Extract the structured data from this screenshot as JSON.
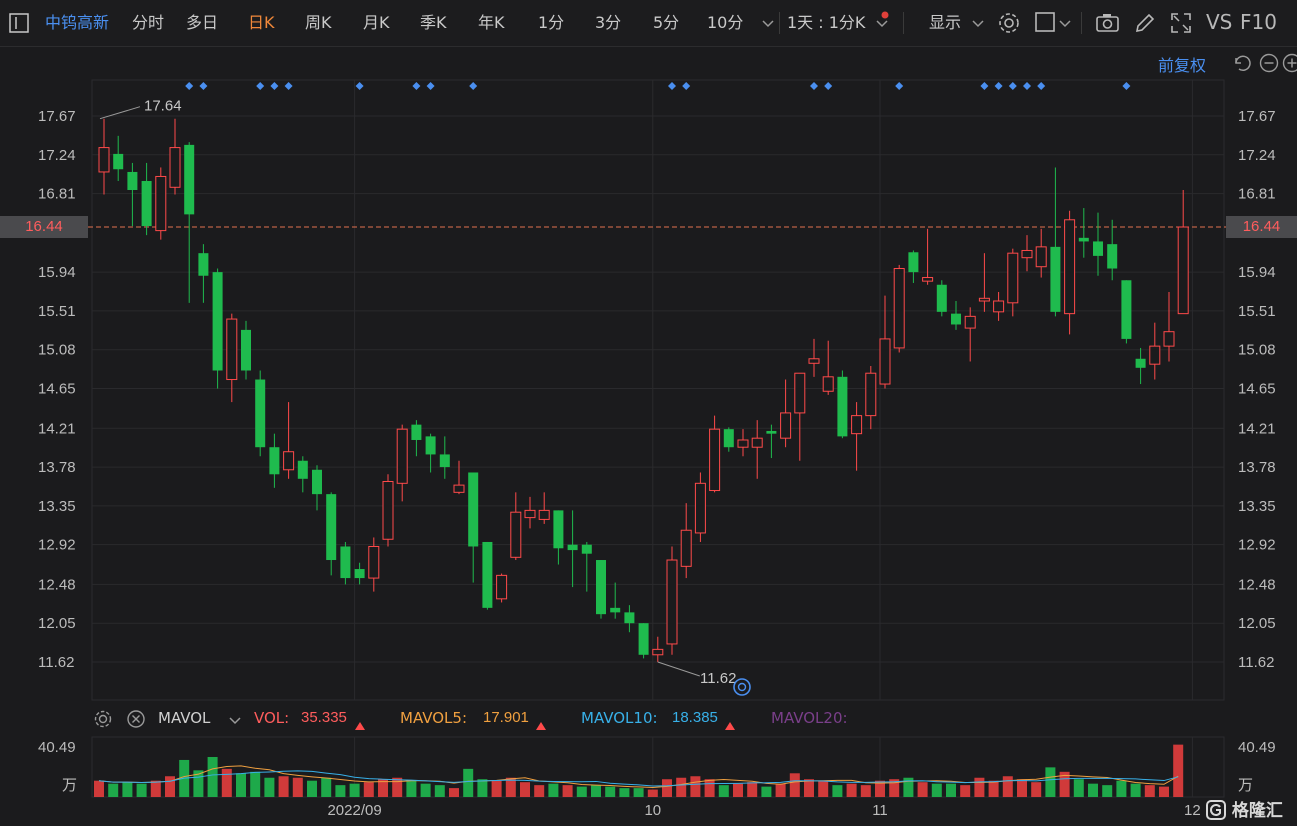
{
  "toolbar": {
    "left_icon": "sidebar-toggle-icon",
    "stock_name": "中钨高新",
    "periods": [
      "分时",
      "多日",
      "日K",
      "周K",
      "月K",
      "季K",
      "年K",
      "1分",
      "3分",
      "5分",
      "10分"
    ],
    "active_period": "日K",
    "combo": "1天 : 1分K",
    "display": "显示",
    "vs": "VS",
    "f10": "F10",
    "icons": [
      "settings-icon",
      "layout-icon",
      "camera-icon",
      "draw-pen-icon",
      "fullscreen-icon"
    ]
  },
  "adjust_label": "前复权",
  "price_axis_labels": [
    "17.67",
    "17.24",
    "16.81",
    "15.94",
    "15.51",
    "15.08",
    "14.65",
    "14.21",
    "13.78",
    "13.35",
    "12.92",
    "12.48",
    "12.05",
    "11.62"
  ],
  "current_price_label": "16.44",
  "colors": {
    "up": "#ff4a4a",
    "down": "#1fbb4e",
    "accent": "#4a8ff0",
    "orange": "#f0883a",
    "bg": "#1b1b1d"
  },
  "indicator_bar": {
    "name": "MAVOL",
    "vol_label": "VOL:",
    "vol_value": "35.335",
    "ma5_label": "MAVOL5:",
    "ma5_value": "17.901",
    "ma10_label": "MAVOL10:",
    "ma10_value": "18.385",
    "ma20_label": "MAVOL20:"
  },
  "volume_axis": {
    "top": "40.49",
    "unit": "万"
  },
  "date_labels": [
    "2022/09",
    "10",
    "11",
    "12"
  ],
  "logo": "格隆汇",
  "chart_data": {
    "type": "candlestick",
    "high_annotation": "17.64",
    "low_annotation": "11.62",
    "ylim": [
      11.35,
      17.95
    ],
    "candles": [
      {
        "o": 17.05,
        "c": 17.32,
        "h": 17.64,
        "l": 16.8
      },
      {
        "o": 17.25,
        "c": 17.08,
        "h": 17.45,
        "l": 16.95
      },
      {
        "o": 17.05,
        "c": 16.85,
        "h": 17.15,
        "l": 16.45
      },
      {
        "o": 16.95,
        "c": 16.45,
        "h": 17.15,
        "l": 16.35
      },
      {
        "o": 16.4,
        "c": 17.0,
        "h": 17.1,
        "l": 16.3
      },
      {
        "o": 16.88,
        "c": 17.32,
        "h": 17.64,
        "l": 16.8
      },
      {
        "o": 17.35,
        "c": 16.58,
        "h": 17.38,
        "l": 15.6
      },
      {
        "o": 16.15,
        "c": 15.9,
        "h": 16.25,
        "l": 15.6
      },
      {
        "o": 15.94,
        "c": 14.85,
        "h": 15.98,
        "l": 14.65
      },
      {
        "o": 14.75,
        "c": 15.42,
        "h": 15.48,
        "l": 14.5
      },
      {
        "o": 15.3,
        "c": 14.85,
        "h": 15.4,
        "l": 14.75
      },
      {
        "o": 14.75,
        "c": 14.0,
        "h": 14.85,
        "l": 13.9
      },
      {
        "o": 14.0,
        "c": 13.7,
        "h": 14.15,
        "l": 13.55
      },
      {
        "o": 13.75,
        "c": 13.95,
        "h": 14.5,
        "l": 13.65
      },
      {
        "o": 13.85,
        "c": 13.65,
        "h": 13.9,
        "l": 13.5
      },
      {
        "o": 13.75,
        "c": 13.48,
        "h": 13.8,
        "l": 13.3
      },
      {
        "o": 13.48,
        "c": 12.75,
        "h": 13.5,
        "l": 12.58
      },
      {
        "o": 12.9,
        "c": 12.55,
        "h": 12.95,
        "l": 12.48
      },
      {
        "o": 12.65,
        "c": 12.55,
        "h": 12.72,
        "l": 12.48
      },
      {
        "o": 12.55,
        "c": 12.9,
        "h": 13.0,
        "l": 12.4
      },
      {
        "o": 12.98,
        "c": 13.62,
        "h": 13.7,
        "l": 12.9
      },
      {
        "o": 13.6,
        "c": 14.2,
        "h": 14.25,
        "l": 13.4
      },
      {
        "o": 14.25,
        "c": 14.08,
        "h": 14.3,
        "l": 13.9
      },
      {
        "o": 14.12,
        "c": 13.92,
        "h": 14.15,
        "l": 13.72
      },
      {
        "o": 13.92,
        "c": 13.78,
        "h": 14.12,
        "l": 13.65
      },
      {
        "o": 13.5,
        "c": 13.58,
        "h": 13.85,
        "l": 13.48
      },
      {
        "o": 13.72,
        "c": 12.9,
        "h": 13.72,
        "l": 12.5
      },
      {
        "o": 12.95,
        "c": 12.22,
        "h": 12.95,
        "l": 12.2
      },
      {
        "o": 12.32,
        "c": 12.58,
        "h": 12.6,
        "l": 12.28
      },
      {
        "o": 12.78,
        "c": 13.28,
        "h": 13.5,
        "l": 12.75
      },
      {
        "o": 13.22,
        "c": 13.3,
        "h": 13.45,
        "l": 13.1
      },
      {
        "o": 13.2,
        "c": 13.3,
        "h": 13.5,
        "l": 13.15
      },
      {
        "o": 13.3,
        "c": 12.88,
        "h": 13.3,
        "l": 12.7
      },
      {
        "o": 12.92,
        "c": 12.86,
        "h": 13.3,
        "l": 12.45
      },
      {
        "o": 12.92,
        "c": 12.82,
        "h": 12.95,
        "l": 12.4
      },
      {
        "o": 12.75,
        "c": 12.15,
        "h": 12.75,
        "l": 12.1
      },
      {
        "o": 12.22,
        "c": 12.17,
        "h": 12.5,
        "l": 12.1
      },
      {
        "o": 12.17,
        "c": 12.05,
        "h": 12.25,
        "l": 11.95
      },
      {
        "o": 12.05,
        "c": 11.7,
        "h": 12.05,
        "l": 11.66
      },
      {
        "o": 11.7,
        "c": 11.76,
        "h": 11.9,
        "l": 11.62
      },
      {
        "o": 11.82,
        "c": 12.75,
        "h": 12.9,
        "l": 11.7
      },
      {
        "o": 12.68,
        "c": 13.08,
        "h": 13.38,
        "l": 12.55
      },
      {
        "o": 13.05,
        "c": 13.6,
        "h": 13.72,
        "l": 12.95
      },
      {
        "o": 13.52,
        "c": 14.2,
        "h": 14.35,
        "l": 13.5
      },
      {
        "o": 14.2,
        "c": 14.0,
        "h": 14.22,
        "l": 13.95
      },
      {
        "o": 14.0,
        "c": 14.08,
        "h": 14.2,
        "l": 13.9
      },
      {
        "o": 14.0,
        "c": 14.1,
        "h": 14.3,
        "l": 13.65
      },
      {
        "o": 14.18,
        "c": 14.15,
        "h": 14.25,
        "l": 13.88
      },
      {
        "o": 14.1,
        "c": 14.38,
        "h": 14.75,
        "l": 14.0
      },
      {
        "o": 14.38,
        "c": 14.82,
        "h": 14.82,
        "l": 13.85
      },
      {
        "o": 14.93,
        "c": 14.98,
        "h": 15.2,
        "l": 14.78
      },
      {
        "o": 14.62,
        "c": 14.78,
        "h": 15.18,
        "l": 14.58
      },
      {
        "o": 14.78,
        "c": 14.12,
        "h": 14.85,
        "l": 14.1
      },
      {
        "o": 14.15,
        "c": 14.35,
        "h": 14.5,
        "l": 13.74
      },
      {
        "o": 14.35,
        "c": 14.82,
        "h": 14.9,
        "l": 14.2
      },
      {
        "o": 14.7,
        "c": 15.2,
        "h": 15.68,
        "l": 14.65
      },
      {
        "o": 15.1,
        "c": 15.98,
        "h": 16.02,
        "l": 15.05
      },
      {
        "o": 16.16,
        "c": 15.94,
        "h": 16.18,
        "l": 15.82
      },
      {
        "o": 15.84,
        "c": 15.88,
        "h": 16.42,
        "l": 15.8
      },
      {
        "o": 15.8,
        "c": 15.5,
        "h": 15.85,
        "l": 15.45
      },
      {
        "o": 15.48,
        "c": 15.36,
        "h": 15.62,
        "l": 15.3
      },
      {
        "o": 15.32,
        "c": 15.45,
        "h": 15.55,
        "l": 14.95
      },
      {
        "o": 15.62,
        "c": 15.65,
        "h": 16.15,
        "l": 15.5
      },
      {
        "o": 15.5,
        "c": 15.62,
        "h": 15.72,
        "l": 15.4
      },
      {
        "o": 15.6,
        "c": 16.15,
        "h": 16.2,
        "l": 15.45
      },
      {
        "o": 16.1,
        "c": 16.18,
        "h": 16.35,
        "l": 15.95
      },
      {
        "o": 16.0,
        "c": 16.22,
        "h": 16.42,
        "l": 15.88
      },
      {
        "o": 16.22,
        "c": 15.5,
        "h": 17.1,
        "l": 15.45
      },
      {
        "o": 15.48,
        "c": 16.52,
        "h": 16.62,
        "l": 15.25
      },
      {
        "o": 16.32,
        "c": 16.28,
        "h": 16.65,
        "l": 16.1
      },
      {
        "o": 16.28,
        "c": 16.12,
        "h": 16.6,
        "l": 15.9
      },
      {
        "o": 16.25,
        "c": 15.98,
        "h": 16.52,
        "l": 15.85
      },
      {
        "o": 15.85,
        "c": 15.2,
        "h": 15.85,
        "l": 15.15
      },
      {
        "o": 14.98,
        "c": 14.88,
        "h": 15.1,
        "l": 14.7
      },
      {
        "o": 14.92,
        "c": 15.12,
        "h": 15.38,
        "l": 14.75
      },
      {
        "o": 15.12,
        "c": 15.28,
        "h": 15.72,
        "l": 14.95
      },
      {
        "o": 15.48,
        "c": 16.44,
        "h": 16.85,
        "l": 15.48
      }
    ],
    "volume": [
      {
        "v": 11,
        "up": true
      },
      {
        "v": 9,
        "up": false
      },
      {
        "v": 10,
        "up": false
      },
      {
        "v": 9,
        "up": false
      },
      {
        "v": 11,
        "up": true
      },
      {
        "v": 14,
        "up": true
      },
      {
        "v": 25,
        "up": false
      },
      {
        "v": 18,
        "up": false
      },
      {
        "v": 27,
        "up": false
      },
      {
        "v": 19,
        "up": true
      },
      {
        "v": 16,
        "up": false
      },
      {
        "v": 17,
        "up": false
      },
      {
        "v": 13,
        "up": false
      },
      {
        "v": 14,
        "up": true
      },
      {
        "v": 13,
        "up": true
      },
      {
        "v": 11,
        "up": false
      },
      {
        "v": 13,
        "up": false
      },
      {
        "v": 8,
        "up": false
      },
      {
        "v": 9,
        "up": false
      },
      {
        "v": 10,
        "up": true
      },
      {
        "v": 12,
        "up": true
      },
      {
        "v": 13,
        "up": true
      },
      {
        "v": 11,
        "up": false
      },
      {
        "v": 9,
        "up": false
      },
      {
        "v": 8,
        "up": false
      },
      {
        "v": 6,
        "up": true
      },
      {
        "v": 19,
        "up": false
      },
      {
        "v": 12,
        "up": false
      },
      {
        "v": 11,
        "up": true
      },
      {
        "v": 13,
        "up": true
      },
      {
        "v": 10,
        "up": true
      },
      {
        "v": 8,
        "up": true
      },
      {
        "v": 9,
        "up": false
      },
      {
        "v": 8,
        "up": true
      },
      {
        "v": 7,
        "up": false
      },
      {
        "v": 8,
        "up": false
      },
      {
        "v": 7,
        "up": false
      },
      {
        "v": 6,
        "up": false
      },
      {
        "v": 6,
        "up": false
      },
      {
        "v": 5,
        "up": true
      },
      {
        "v": 12,
        "up": true
      },
      {
        "v": 13,
        "up": true
      },
      {
        "v": 14,
        "up": true
      },
      {
        "v": 12,
        "up": true
      },
      {
        "v": 8,
        "up": false
      },
      {
        "v": 9,
        "up": true
      },
      {
        "v": 10,
        "up": true
      },
      {
        "v": 7,
        "up": false
      },
      {
        "v": 9,
        "up": true
      },
      {
        "v": 16,
        "up": true
      },
      {
        "v": 12,
        "up": true
      },
      {
        "v": 11,
        "up": true
      },
      {
        "v": 8,
        "up": false
      },
      {
        "v": 9,
        "up": true
      },
      {
        "v": 8,
        "up": true
      },
      {
        "v": 11,
        "up": true
      },
      {
        "v": 12,
        "up": true
      },
      {
        "v": 13,
        "up": false
      },
      {
        "v": 10,
        "up": true
      },
      {
        "v": 9,
        "up": false
      },
      {
        "v": 9,
        "up": false
      },
      {
        "v": 8,
        "up": true
      },
      {
        "v": 13,
        "up": true
      },
      {
        "v": 11,
        "up": true
      },
      {
        "v": 14,
        "up": true
      },
      {
        "v": 12,
        "up": true
      },
      {
        "v": 10,
        "up": true
      },
      {
        "v": 20,
        "up": false
      },
      {
        "v": 17,
        "up": true
      },
      {
        "v": 12,
        "up": false
      },
      {
        "v": 9,
        "up": false
      },
      {
        "v": 8,
        "up": false
      },
      {
        "v": 11,
        "up": false
      },
      {
        "v": 9,
        "up": false
      },
      {
        "v": 8,
        "up": true
      },
      {
        "v": 7,
        "up": true
      },
      {
        "v": 35.335,
        "up": true
      }
    ],
    "vol_max": 40.49,
    "event_marks": [
      6,
      7,
      11,
      12,
      13,
      18,
      22,
      23,
      26,
      40,
      41,
      50,
      51,
      56,
      62,
      63,
      64,
      65,
      66,
      72
    ]
  }
}
